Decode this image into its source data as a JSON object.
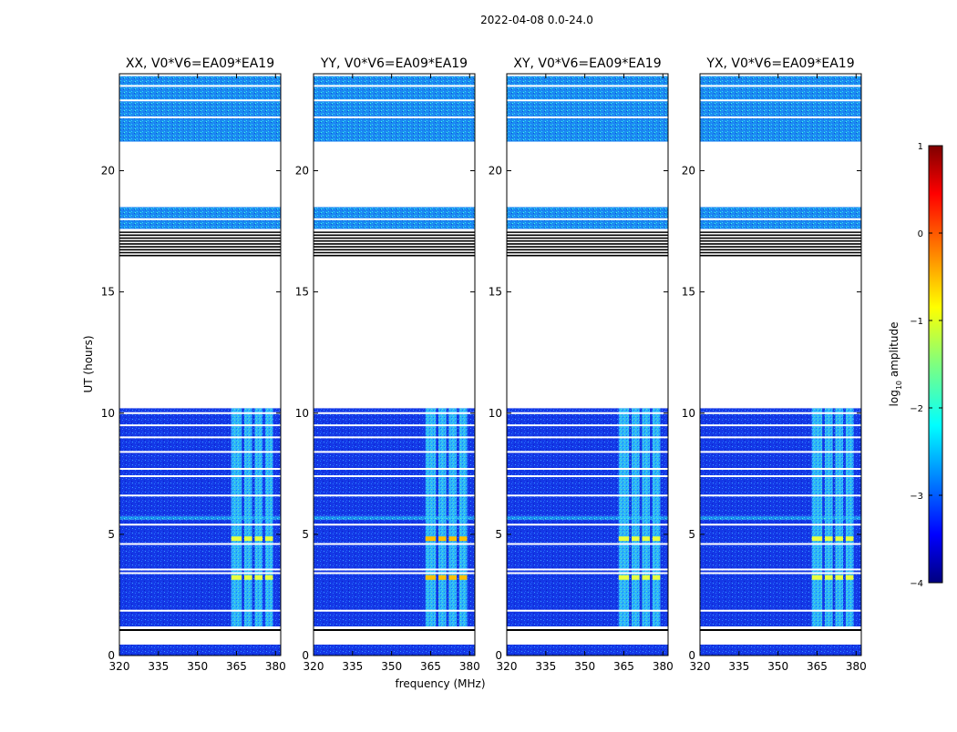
{
  "chart_data": {
    "type": "heatmap",
    "suptitle": "2022-04-08 0.0-24.0",
    "xlabel": "frequency (MHz)",
    "ylabel": "UT (hours)",
    "xlim": [
      320,
      382
    ],
    "ylim": [
      0,
      24
    ],
    "xticks": [
      320,
      335,
      350,
      365,
      380
    ],
    "yticks": [
      0,
      5,
      10,
      15,
      20
    ],
    "panels": [
      {
        "title": "XX, V0*V6=EA09*EA19",
        "polarization": "XX"
      },
      {
        "title": "YY, V0*V6=EA09*EA19",
        "polarization": "YY"
      },
      {
        "title": "XY, V0*V6=EA09*EA19",
        "polarization": "XY"
      },
      {
        "title": "YX, V0*V6=EA09*EA19",
        "polarization": "YX"
      }
    ],
    "time_blocks_hours": [
      {
        "start": 0.0,
        "end": 0.45,
        "level": "low"
      },
      {
        "start": 1.2,
        "end": 5.6,
        "level": "low"
      },
      {
        "start": 5.6,
        "end": 5.75,
        "level": "mid"
      },
      {
        "start": 5.75,
        "end": 10.2,
        "level": "low"
      },
      {
        "start": 16.5,
        "end": 17.5,
        "level": "flagged"
      },
      {
        "start": 17.6,
        "end": 18.5,
        "level": "mid"
      },
      {
        "start": 21.2,
        "end": 23.9,
        "level": "mid"
      }
    ],
    "rfi_channels_mhz": [
      {
        "from": 363,
        "to": 367
      },
      {
        "from": 368,
        "to": 371
      },
      {
        "from": 372,
        "to": 375
      },
      {
        "from": 376,
        "to": 379
      }
    ],
    "rfi_hot_rows_hours": [
      3.2,
      4.8
    ],
    "colorbar": {
      "label": "log$_{10}$ amplitude",
      "label_main": "log",
      "label_sub": "10",
      "label_rest": " amplitude",
      "min": -4,
      "max": 1,
      "ticks": [
        "1",
        "0",
        "−1",
        "−2",
        "−3",
        "−4"
      ],
      "colormap": "jet"
    }
  }
}
